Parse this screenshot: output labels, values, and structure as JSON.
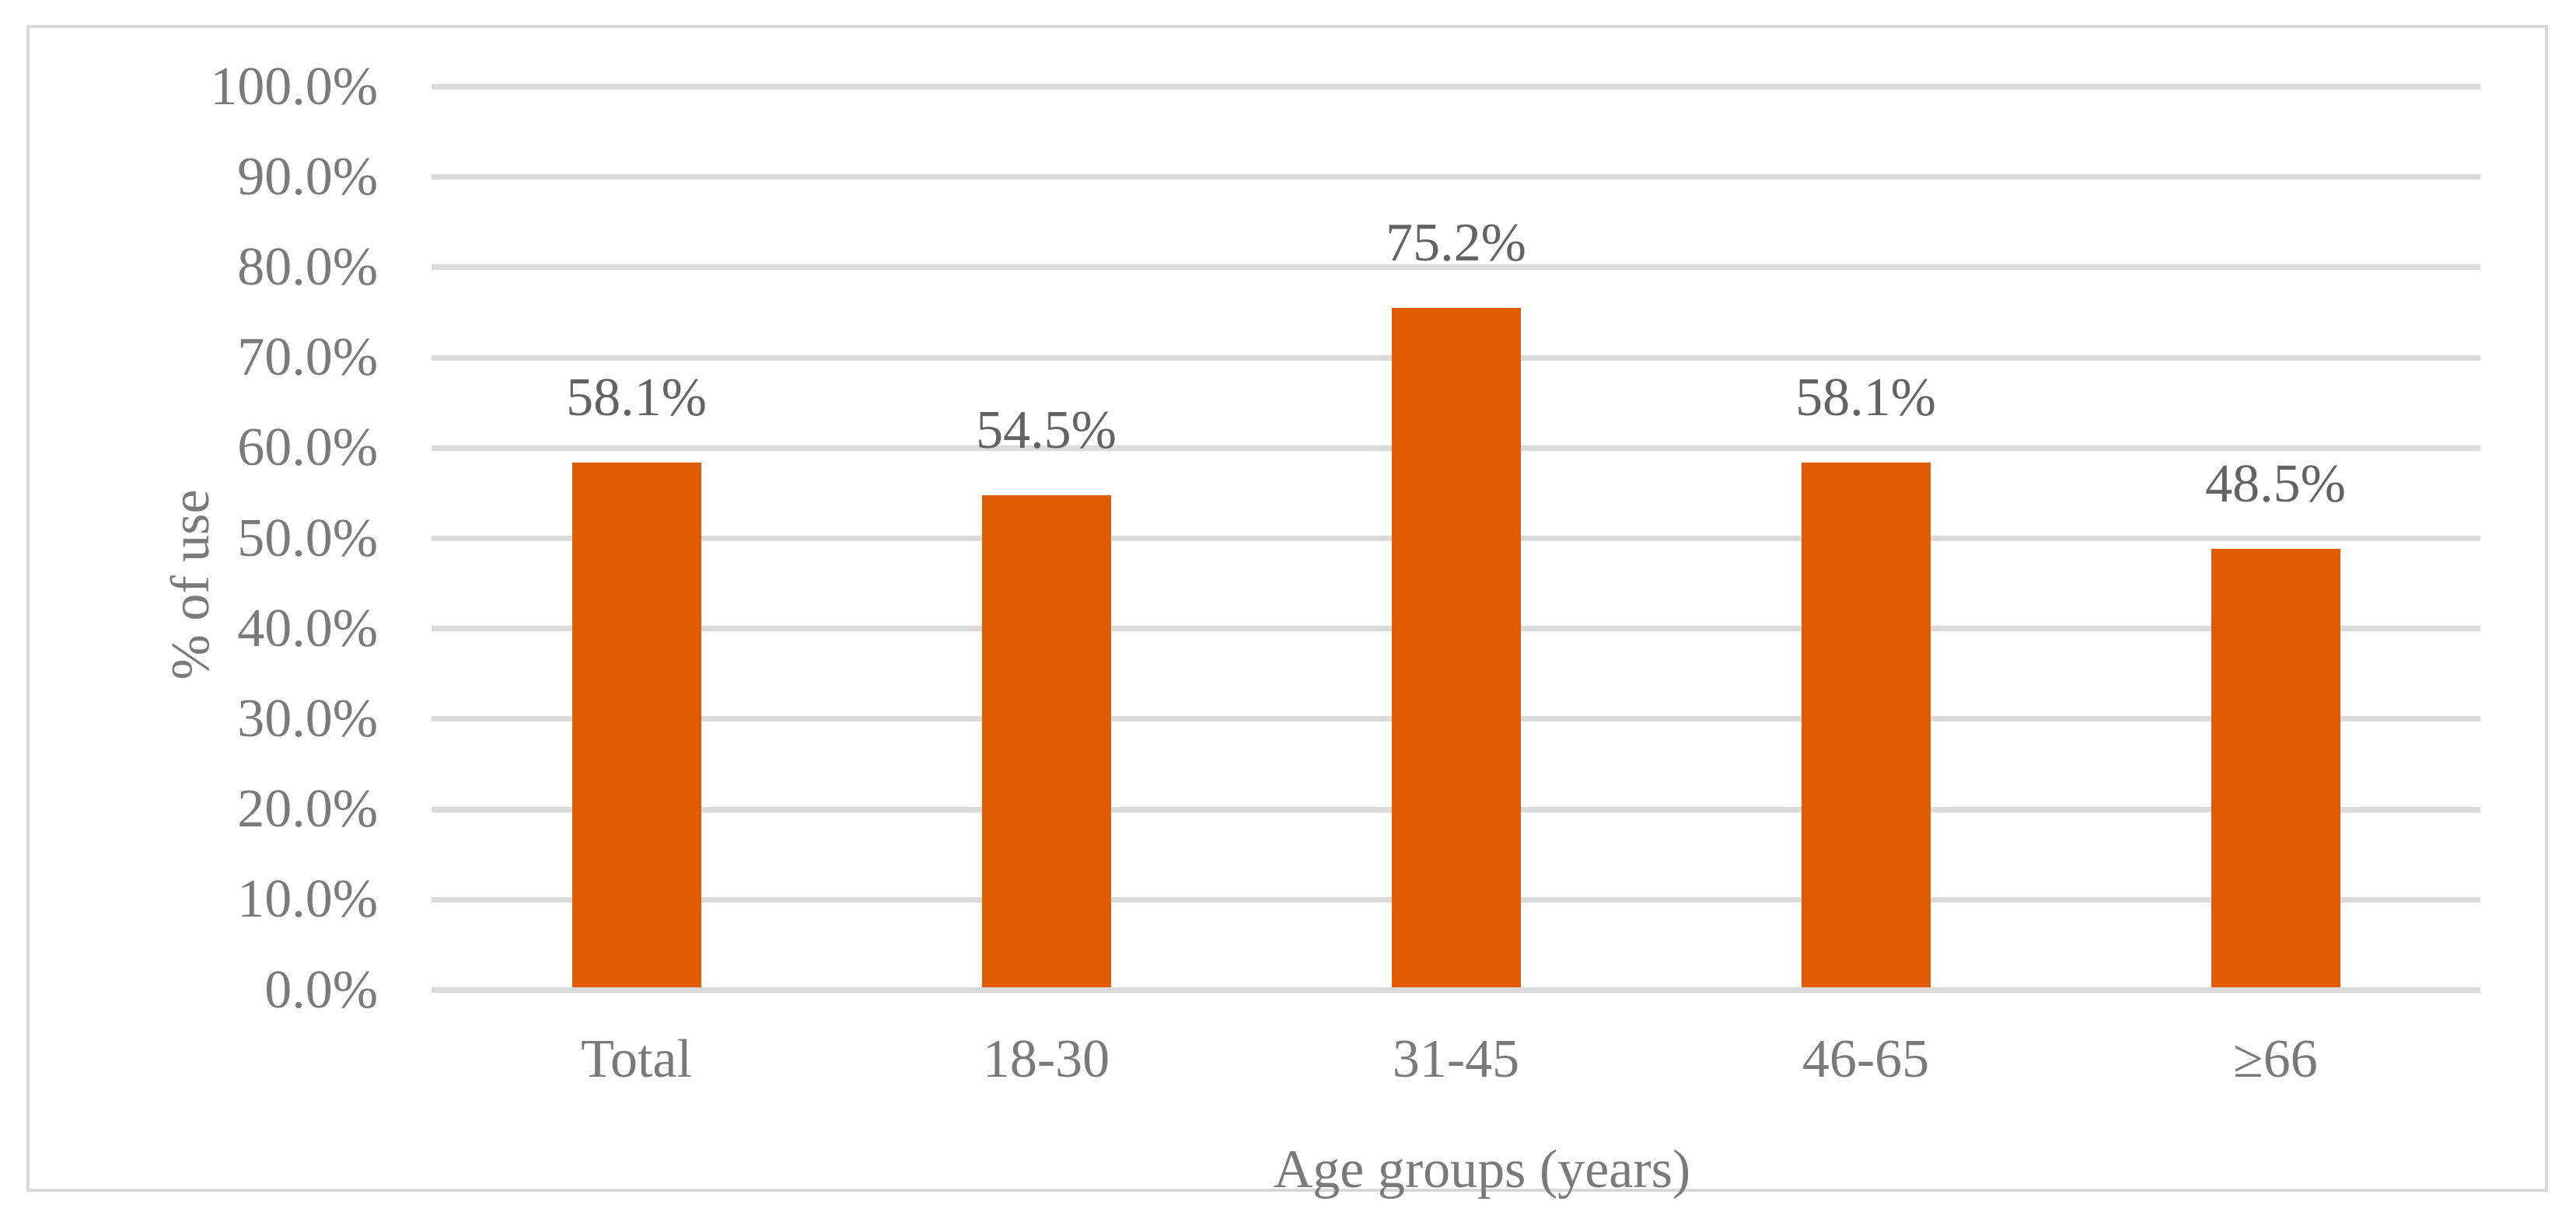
{
  "figure": {
    "background_color": "#ffffff",
    "frame_border_color": "#d9d9d9"
  },
  "chart_data": {
    "type": "bar",
    "title": "",
    "categories": [
      "Total",
      "18-30",
      "31-45",
      "46-65",
      "≥66"
    ],
    "values": [
      58.1,
      54.5,
      75.2,
      58.1,
      48.5
    ],
    "data_labels": [
      "58.1%",
      "54.5%",
      "75.2%",
      "58.1%",
      "48.5%"
    ],
    "xlabel": "Age groups (years)",
    "ylabel": "% of use",
    "ylim": [
      0,
      100
    ],
    "ytick_step": 10,
    "ytick_labels": [
      "0.0%",
      "10.0%",
      "20.0%",
      "30.0%",
      "40.0%",
      "50.0%",
      "60.0%",
      "70.0%",
      "80.0%",
      "90.0%",
      "100.0%"
    ],
    "grid": true,
    "legend": false,
    "bar_color": "#e05c04",
    "gridline_color": "#dbdbdb",
    "axis_text_color": "#7a7a7a",
    "data_label_color": "#636363"
  }
}
